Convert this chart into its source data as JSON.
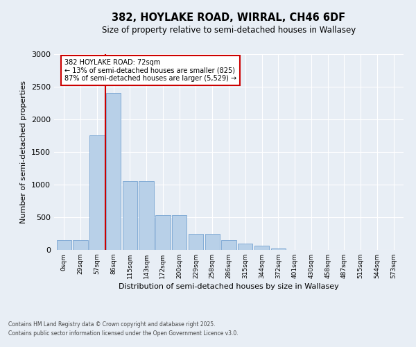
{
  "title1": "382, HOYLAKE ROAD, WIRRAL, CH46 6DF",
  "title2": "Size of property relative to semi-detached houses in Wallasey",
  "xlabel": "Distribution of semi-detached houses by size in Wallasey",
  "ylabel": "Number of semi-detached properties",
  "bar_color": "#b8d0e8",
  "bar_edge_color": "#6699cc",
  "annotation_line_color": "#cc0000",
  "annotation_box_color": "#cc0000",
  "annotation_text": "382 HOYLAKE ROAD: 72sqm\n← 13% of semi-detached houses are smaller (825)\n87% of semi-detached houses are larger (5,529) →",
  "categories": [
    "0sqm",
    "29sqm",
    "57sqm",
    "86sqm",
    "115sqm",
    "143sqm",
    "172sqm",
    "200sqm",
    "229sqm",
    "258sqm",
    "286sqm",
    "315sqm",
    "344sqm",
    "372sqm",
    "401sqm",
    "430sqm",
    "458sqm",
    "487sqm",
    "515sqm",
    "544sqm",
    "573sqm"
  ],
  "values": [
    150,
    150,
    1750,
    2400,
    1050,
    1050,
    530,
    530,
    240,
    240,
    145,
    95,
    60,
    25,
    4,
    2,
    1,
    0,
    0,
    0,
    0
  ],
  "ylim": [
    0,
    3000
  ],
  "yticks": [
    0,
    500,
    1000,
    1500,
    2000,
    2500,
    3000
  ],
  "vline_position": 2.5,
  "footer1": "Contains HM Land Registry data © Crown copyright and database right 2025.",
  "footer2": "Contains public sector information licensed under the Open Government Licence v3.0.",
  "background_color": "#e8eef5",
  "grid_color": "#ffffff"
}
